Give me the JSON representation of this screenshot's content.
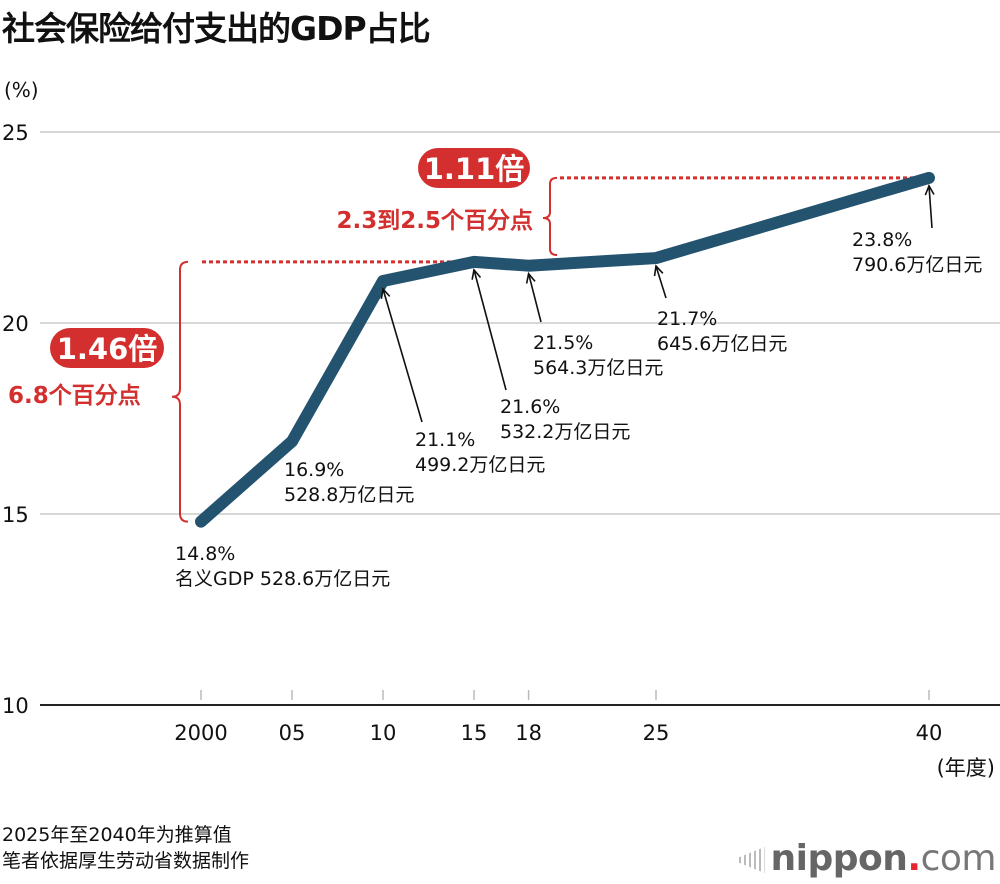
{
  "title": "社会保险给付支出的GDP占比",
  "y_unit": "(%)",
  "x_unit": "(年度)",
  "notes": [
    "2025年至2040年为推算值",
    "笔者依据厚生劳动省数据制作"
  ],
  "logo": {
    "main": "nippon",
    "dot": ".",
    "suffix": "com"
  },
  "colors": {
    "line": "#24536f",
    "accent": "#d32f2f",
    "grid": "#cccccc"
  },
  "chart_data": {
    "type": "line",
    "title": "社会保险给付支出的GDP占比",
    "ylabel": "(%)",
    "xlabel": "(年度)",
    "ylim": [
      10,
      25
    ],
    "yticks": [
      "10",
      "15",
      "20",
      "25"
    ],
    "grid": true,
    "x": [
      2000,
      2005,
      2010,
      2015,
      2018,
      2025,
      2040
    ],
    "xtick_labels": [
      "2000",
      "05",
      "10",
      "15",
      "18",
      "25",
      "40"
    ],
    "values": [
      14.8,
      16.9,
      21.1,
      21.6,
      21.5,
      21.7,
      23.8
    ],
    "data_labels": [
      {
        "pct": "14.8%",
        "amount": "名义GDP 528.6万亿日元"
      },
      {
        "pct": "16.9%",
        "amount": "528.8万亿日元"
      },
      {
        "pct": "21.1%",
        "amount": "499.2万亿日元"
      },
      {
        "pct": "21.6%",
        "amount": "532.2万亿日元"
      },
      {
        "pct": "21.5%",
        "amount": "564.3万亿日元"
      },
      {
        "pct": "21.7%",
        "amount": "645.6万亿日元"
      },
      {
        "pct": "23.8%",
        "amount": "790.6万亿日元"
      }
    ],
    "annotations": [
      {
        "ratio": "1.46倍",
        "points": "6.8个百分点",
        "from_year": 2000,
        "to_year": 2015
      },
      {
        "ratio": "1.11倍",
        "points": "2.3到2.5个百分点",
        "from_year": 2018,
        "to_year": 2040
      }
    ]
  }
}
